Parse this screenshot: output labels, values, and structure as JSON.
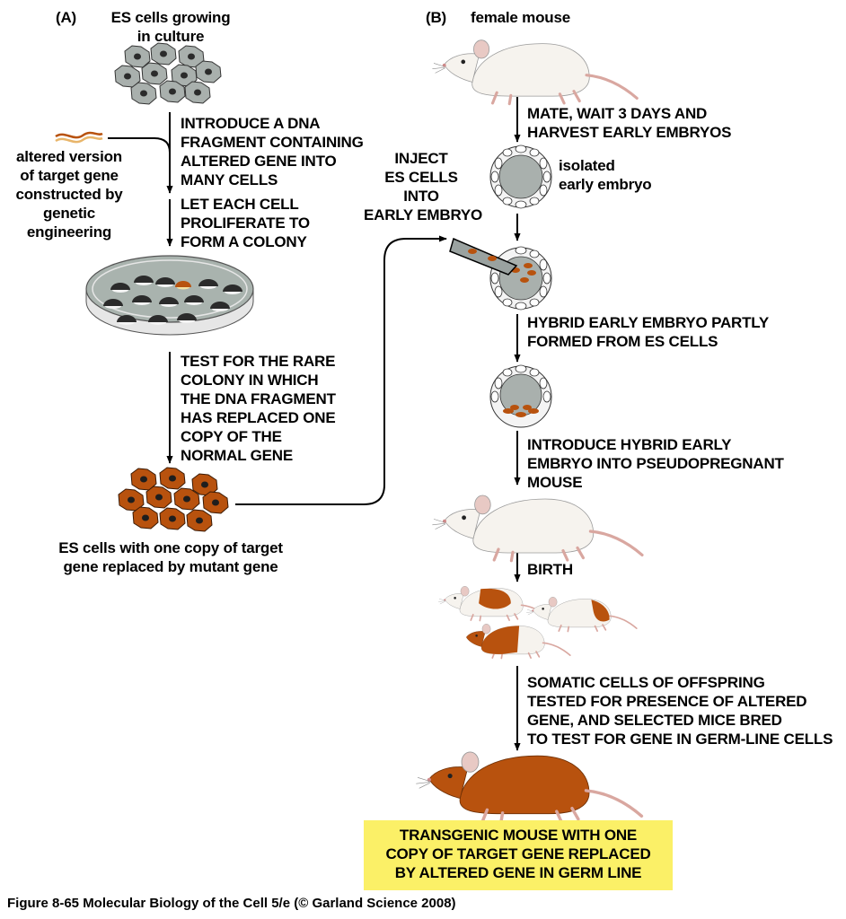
{
  "panel_a": {
    "label": "(A)",
    "es_cells_label": [
      "ES cells growing",
      "in culture"
    ],
    "altered_gene_label": [
      "altered version",
      "of target gene",
      "constructed by",
      "genetic",
      "engineering"
    ],
    "step1": [
      "INTRODUCE A DNA",
      "FRAGMENT CONTAINING",
      "ALTERED GENE INTO",
      "MANY CELLS"
    ],
    "step2": [
      "LET EACH CELL",
      "PROLIFERATE TO",
      "FORM A COLONY"
    ],
    "step3": [
      "TEST FOR THE RARE",
      "COLONY IN WHICH",
      "THE DNA FRAGMENT",
      "HAS REPLACED ONE",
      "COPY OF THE",
      "NORMAL GENE"
    ],
    "result_label": [
      "ES cells with one copy of target",
      "gene replaced by mutant gene"
    ]
  },
  "panel_b": {
    "label": "(B)",
    "female_label": "female mouse",
    "step1": [
      "MATE, WAIT 3 DAYS AND",
      "HARVEST EARLY EMBRYOS"
    ],
    "embryo_label": [
      "isolated",
      "early embryo"
    ],
    "inject_label": [
      "INJECT",
      "ES CELLS",
      "INTO",
      "EARLY EMBRYO"
    ],
    "step2": [
      "HYBRID EARLY EMBRYO PARTLY",
      "FORMED FROM ES CELLS"
    ],
    "step3": [
      "INTRODUCE HYBRID EARLY",
      "EMBRYO INTO PSEUDOPREGNANT",
      "MOUSE"
    ],
    "step4": "BIRTH",
    "step5": [
      "SOMATIC CELLS OF OFFSPRING",
      "TESTED FOR  PRESENCE OF ALTERED",
      "GENE, AND SELECTED MICE BRED",
      "TO TEST FOR GENE IN GERM-LINE CELLS"
    ],
    "final_label": [
      "TRANSGENIC MOUSE WITH ONE",
      "COPY OF TARGET GENE REPLACED",
      "BY ALTERED GENE IN GERM LINE"
    ]
  },
  "caption": "Figure 8-65  Molecular Biology of the Cell 5/e (© Garland Science 2008)",
  "colors": {
    "es_cell": "#a9b0ad",
    "mutant_cell": "#b8520e",
    "highlight": "#fbf067",
    "dish": "#a9b3ae"
  }
}
